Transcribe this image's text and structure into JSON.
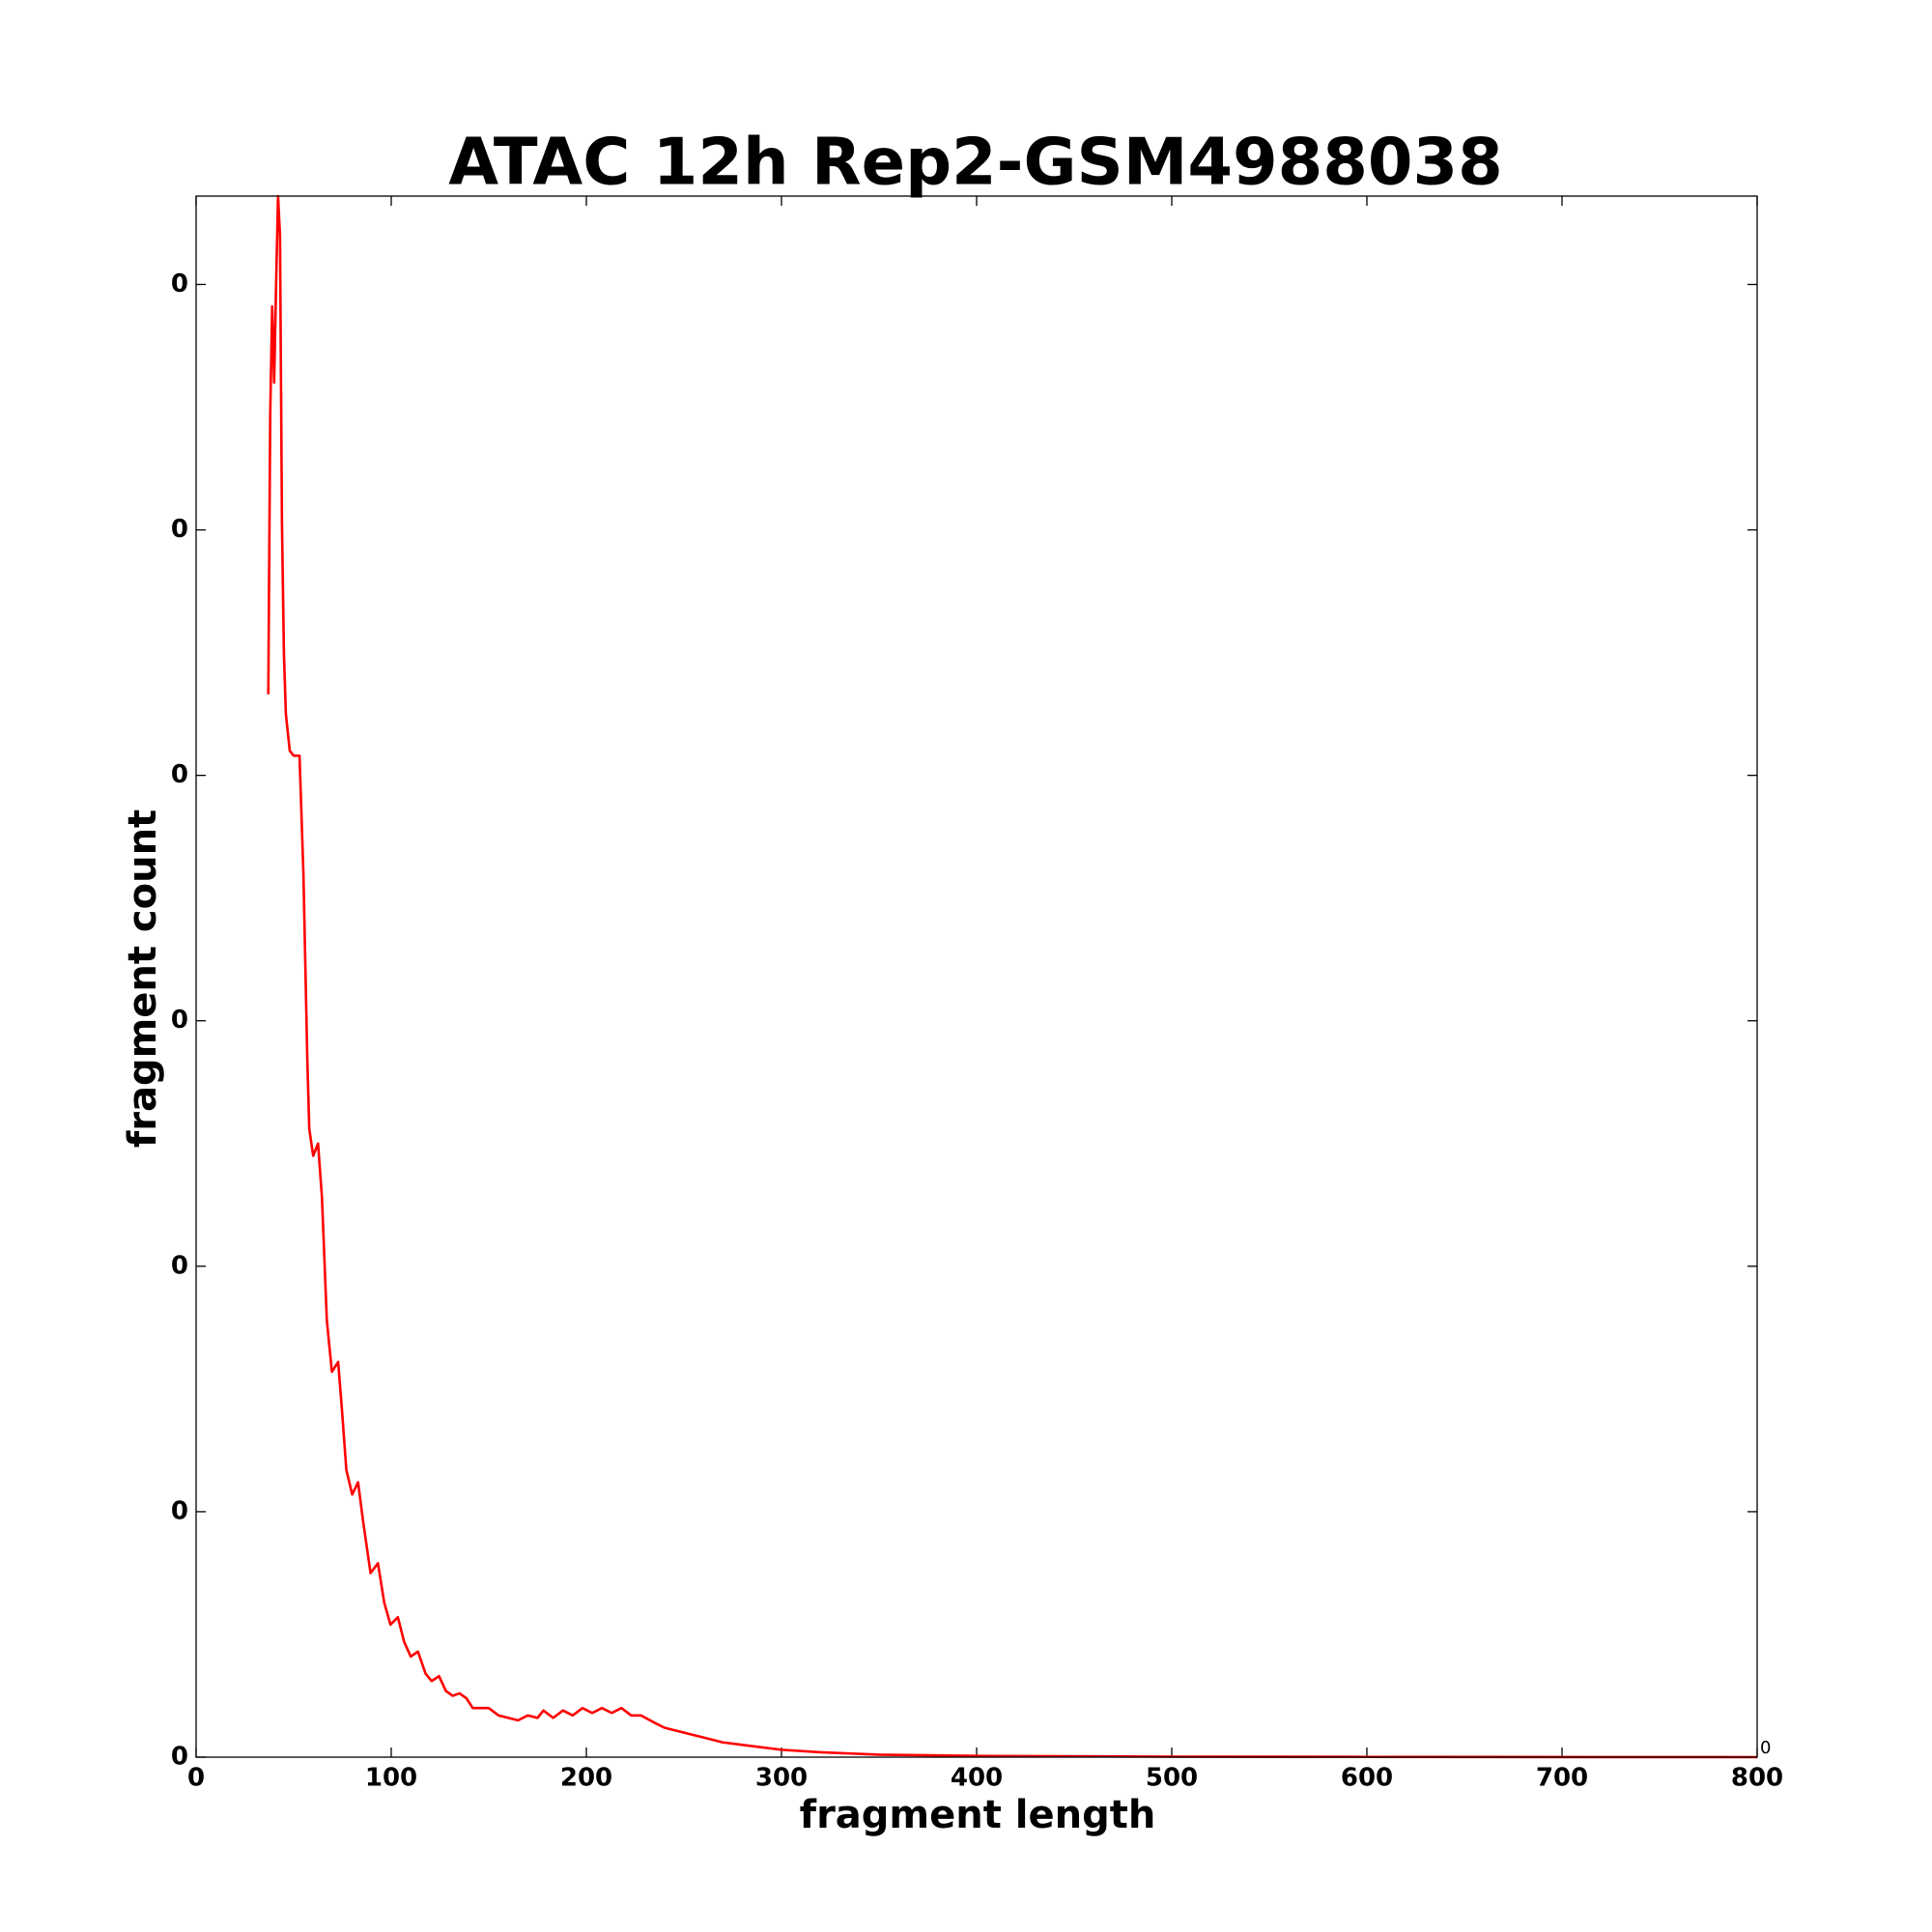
{
  "chart_data": {
    "type": "line",
    "title": "ATAC 12h Rep2-GSM4988038",
    "x_label": "fragment length",
    "y_label": "fragment count",
    "offset_text": "0",
    "x": [
      37,
      38,
      39,
      40,
      41,
      42,
      43,
      44,
      45,
      46,
      48,
      50,
      53,
      55,
      57,
      58,
      60,
      62.5,
      64.5,
      67,
      69.6,
      72.8,
      74.7,
      77,
      80,
      83,
      85.6,
      89.4,
      93.2,
      96.4,
      99.6,
      103.4,
      106.6,
      110,
      113.7,
      117.6,
      120.7,
      124.5,
      128,
      131.5,
      135,
      138.5,
      141.8,
      150,
      155,
      165,
      170,
      175,
      178,
      183,
      188,
      193,
      198,
      203,
      208,
      213,
      218,
      223,
      228,
      235,
      240,
      250,
      260,
      270,
      280,
      300,
      320,
      350,
      400,
      500,
      600,
      800
    ],
    "series": [
      {
        "name": "fragment count",
        "color": "#ff0000",
        "values": [
          4.33,
          5.48,
          5.91,
          5.6,
          6.0,
          6.36,
          6.2,
          5.03,
          4.5,
          4.25,
          4.1,
          4.08,
          4.08,
          3.6,
          2.84,
          2.56,
          2.45,
          2.5,
          2.28,
          1.78,
          1.57,
          1.61,
          1.42,
          1.17,
          1.07,
          1.12,
          0.96,
          0.75,
          0.79,
          0.63,
          0.54,
          0.57,
          0.47,
          0.41,
          0.43,
          0.34,
          0.31,
          0.33,
          0.27,
          0.25,
          0.26,
          0.24,
          0.2,
          0.2,
          0.17,
          0.15,
          0.17,
          0.16,
          0.19,
          0.16,
          0.19,
          0.17,
          0.2,
          0.18,
          0.2,
          0.18,
          0.2,
          0.17,
          0.17,
          0.14,
          0.12,
          0.1,
          0.08,
          0.06,
          0.05,
          0.03,
          0.02,
          0.01,
          0.005,
          0.002,
          0.001,
          0
        ]
      }
    ],
    "xlim": [
      0,
      800
    ],
    "xticks": [
      0,
      100,
      200,
      300,
      400,
      500,
      600,
      700,
      800
    ],
    "ylim": [
      0,
      6.36
    ],
    "yticks": [
      0,
      {
        "value": 1,
        "label": "0"
      },
      {
        "value": 2,
        "label": "0"
      },
      {
        "value": 3,
        "label": "0"
      },
      {
        "value": 4,
        "label": "0"
      },
      {
        "value": 5,
        "label": "0"
      },
      {
        "value": 6,
        "label": "0"
      }
    ],
    "grid": false
  }
}
